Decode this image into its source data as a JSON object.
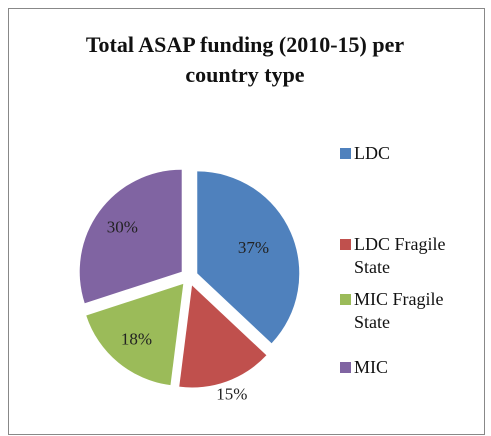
{
  "chart_data": {
    "type": "pie",
    "title": "Total ASAP funding (2010-15) per country type",
    "categories": [
      "LDC",
      "LDC Fragile State",
      "MIC Fragile State",
      "MIC"
    ],
    "values": [
      37,
      15,
      18,
      30
    ],
    "value_labels": [
      "37%",
      "15%",
      "18%",
      "30%"
    ],
    "colors": [
      "#4f81bd",
      "#c0504d",
      "#9bbb59",
      "#8064a2"
    ],
    "legend": "right"
  }
}
